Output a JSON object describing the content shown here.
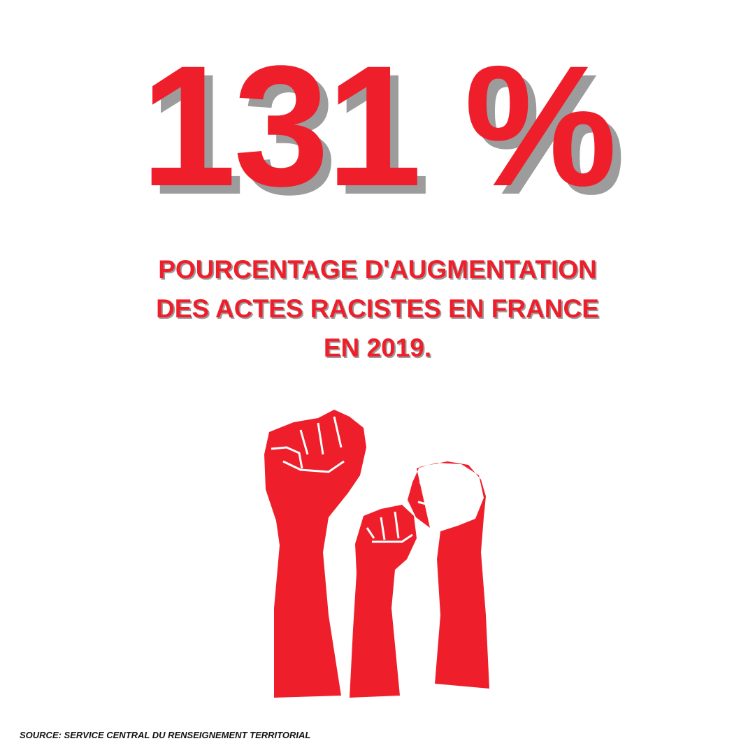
{
  "headline": "131 %",
  "description": {
    "lines": [
      "POURCENTAGE D'AUGMENTATION",
      "DES ACTES RACISTES EN FRANCE",
      "EN 2019."
    ]
  },
  "source": "SOURCE: SERVICE CENTRAL DU RENSEIGNEMENT TERRITORIAL"
}
